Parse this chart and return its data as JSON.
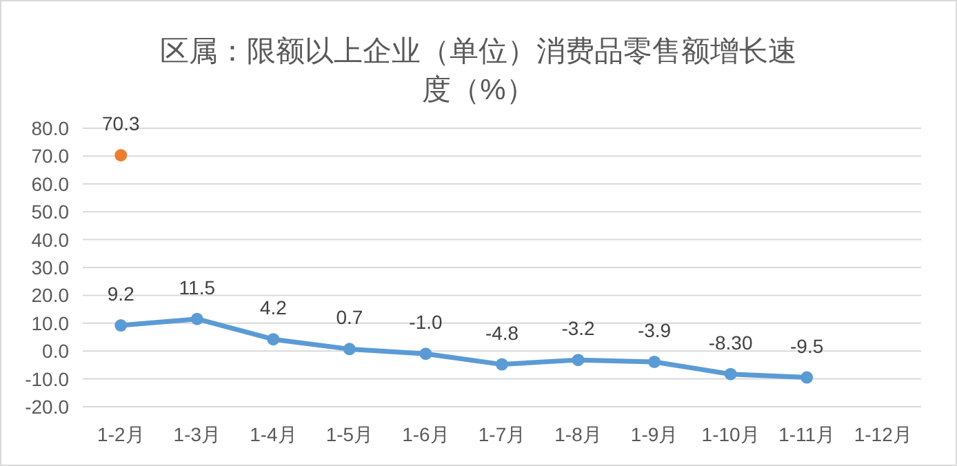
{
  "chart_data": {
    "type": "line",
    "title": "区属：限额以上企业（单位）消费品零售额增长速度（%）",
    "categories": [
      "1-2月",
      "1-3月",
      "1-4月",
      "1-5月",
      "1-6月",
      "1-7月",
      "1-8月",
      "1-9月",
      "1-10月",
      "1-11月",
      "1-12月"
    ],
    "series": [
      {
        "color": "#5b9bd5",
        "values": [
          9.2,
          11.5,
          4.2,
          0.7,
          -1.0,
          -4.8,
          -3.2,
          -3.9,
          -8.3,
          -9.5,
          null
        ],
        "value_labels": [
          "9.2",
          "11.5",
          "4.2",
          "0.7",
          "-1.0",
          "-4.8",
          "-3.2",
          "-3.9",
          "-8.30",
          "-9.5",
          null
        ]
      },
      {
        "type": "scatter",
        "color": "#ed7d31",
        "values": [
          70.3,
          null,
          null,
          null,
          null,
          null,
          null,
          null,
          null,
          null,
          null
        ],
        "value_labels": [
          "70.3",
          null,
          null,
          null,
          null,
          null,
          null,
          null,
          null,
          null,
          null
        ]
      }
    ],
    "ylim": [
      -20,
      80
    ],
    "yticks": [
      {
        "value": -20,
        "label": "-20.0"
      },
      {
        "value": -10,
        "label": "-10.0"
      },
      {
        "value": 0,
        "label": "0.0"
      },
      {
        "value": 10,
        "label": "10.0"
      },
      {
        "value": 20,
        "label": "20.0"
      },
      {
        "value": 30,
        "label": "30.0"
      },
      {
        "value": 40,
        "label": "40.0"
      },
      {
        "value": 50,
        "label": "50.0"
      },
      {
        "value": 60,
        "label": "60.0"
      },
      {
        "value": 70,
        "label": "70.0"
      },
      {
        "value": 80,
        "label": "80.0"
      }
    ],
    "grid": "y",
    "marker": "circle"
  }
}
